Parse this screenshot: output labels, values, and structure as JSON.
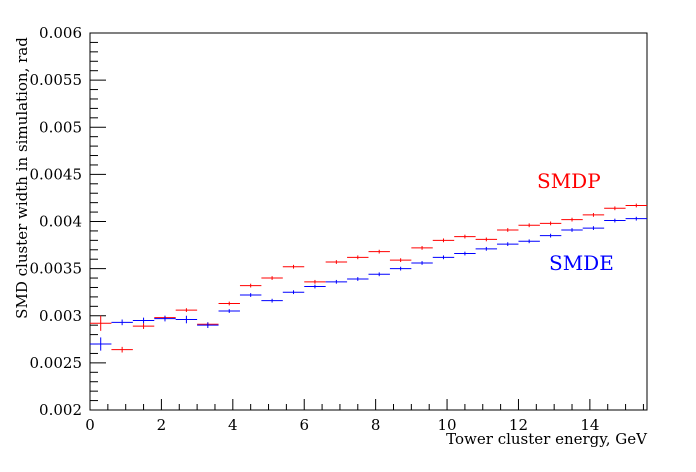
{
  "chart_data": {
    "type": "scatter",
    "title": "",
    "xlabel": "Tower cluster energy, GeV",
    "ylabel": "SMD cluster width in simulation, rad",
    "xlim": [
      0,
      15.6
    ],
    "ylim": [
      0.002,
      0.006
    ],
    "bin_width": 0.6,
    "x_ticks": [
      "0",
      "2",
      "4",
      "6",
      "8",
      "10",
      "12",
      "14"
    ],
    "y_ticks": [
      "0.002",
      "0.0025",
      "0.003",
      "0.0035",
      "0.004",
      "0.0045",
      "0.005",
      "0.0055",
      "0.006"
    ],
    "grid": false,
    "x": [
      0.3,
      0.9,
      1.5,
      2.1,
      2.7,
      3.3,
      3.9,
      4.5,
      5.1,
      5.7,
      6.3,
      6.9,
      7.5,
      8.1,
      8.7,
      9.3,
      9.9,
      10.5,
      11.1,
      11.7,
      12.3,
      12.9,
      13.5,
      14.1,
      14.7,
      15.3
    ],
    "series": [
      {
        "name": "SMDP",
        "color": "#ff0000",
        "values": [
          0.00292,
          0.00264,
          0.00289,
          0.00298,
          0.00306,
          0.00291,
          0.00313,
          0.00332,
          0.0034,
          0.00352,
          0.00336,
          0.00357,
          0.00362,
          0.00368,
          0.00359,
          0.00372,
          0.0038,
          0.00384,
          0.00381,
          0.00391,
          0.00396,
          0.00398,
          0.00402,
          0.00407,
          0.00414,
          0.00417
        ],
        "errors": [
          8e-05,
          3e-05,
          3e-05,
          2e-05,
          2e-05,
          2e-05,
          2e-05,
          2e-05,
          2e-05,
          2e-05,
          2e-05,
          2e-05,
          2e-05,
          2e-05,
          2e-05,
          2e-05,
          2e-05,
          2e-05,
          2e-05,
          2e-05,
          2e-05,
          2e-05,
          2e-05,
          2e-05,
          2e-05,
          2e-05
        ]
      },
      {
        "name": "SMDE",
        "color": "#0000ff",
        "values": [
          0.0027,
          0.00293,
          0.00295,
          0.00297,
          0.00296,
          0.0029,
          0.00305,
          0.00322,
          0.00316,
          0.00325,
          0.00331,
          0.00336,
          0.00339,
          0.00344,
          0.0035,
          0.00356,
          0.00362,
          0.00366,
          0.00371,
          0.00376,
          0.00379,
          0.00385,
          0.00391,
          0.00393,
          0.00401,
          0.00403
        ],
        "errors": [
          7e-05,
          3e-05,
          3e-05,
          3e-05,
          4e-05,
          3e-05,
          2e-05,
          2e-05,
          2e-05,
          2e-05,
          2e-05,
          2e-05,
          2e-05,
          2e-05,
          2e-05,
          2e-05,
          2e-05,
          2e-05,
          2e-05,
          2e-05,
          2e-05,
          2e-05,
          2e-05,
          2e-05,
          2e-05,
          2e-05
        ]
      }
    ]
  }
}
